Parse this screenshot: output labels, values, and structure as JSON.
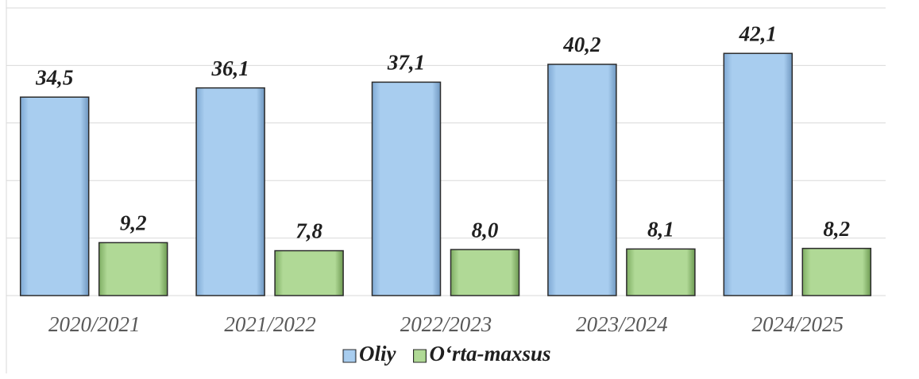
{
  "chart_data": {
    "type": "bar",
    "categories": [
      "2020/2021",
      "2021/2022",
      "2022/2023",
      "2023/2024",
      "2024/2025"
    ],
    "series": [
      {
        "name": "Oliy",
        "color": "#9dc3e6",
        "values": [
          34.5,
          36.1,
          37.1,
          40.2,
          42.1
        ],
        "value_labels": [
          "34,5",
          "36,1",
          "37,1",
          "40,2",
          "42,1"
        ]
      },
      {
        "name": "O‘rta-maxsus",
        "color": "#a9d18e",
        "values": [
          9.2,
          7.8,
          8.0,
          8.1,
          8.2
        ],
        "value_labels": [
          "9,2",
          "7,8",
          "8,0",
          "8,1",
          "8,2"
        ]
      }
    ],
    "ylim": [
      0,
      50
    ],
    "yticks": [
      0,
      10,
      20,
      30,
      40,
      50
    ],
    "grid": true,
    "legend": "bottom"
  }
}
